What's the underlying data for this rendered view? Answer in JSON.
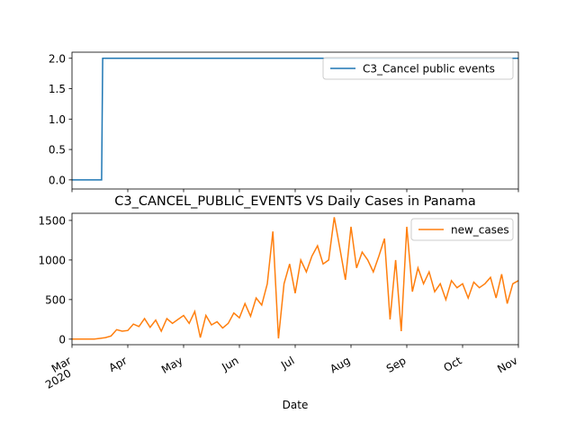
{
  "chart_data": [
    {
      "type": "line",
      "xlim": [
        3,
        11
      ],
      "ylim": [
        -0.15,
        2.1
      ],
      "yticks": [
        {
          "value": 0,
          "label": "0.0"
        },
        {
          "value": 0.5,
          "label": "0.5"
        },
        {
          "value": 1,
          "label": "1.0"
        },
        {
          "value": 1.5,
          "label": "1.5"
        },
        {
          "value": 2,
          "label": "2.0"
        }
      ],
      "legend": "upper right",
      "series": [
        {
          "name": "C3_Cancel public events",
          "color": "#1f77b4",
          "x": [
            3,
            3.53,
            3.55,
            11
          ],
          "values": [
            0,
            0,
            2,
            2
          ]
        }
      ]
    },
    {
      "type": "line",
      "title": "C3_CANCEL_PUBLIC_EVENTS VS Daily Cases in Panama",
      "xlabel": "Date",
      "xlim": [
        3,
        11
      ],
      "ylim": [
        -70,
        1590
      ],
      "xticks": [
        {
          "value": 3,
          "label": "Mar"
        },
        {
          "value": 4,
          "label": "Apr"
        },
        {
          "value": 5,
          "label": "May"
        },
        {
          "value": 6,
          "label": "Jun"
        },
        {
          "value": 7,
          "label": "Jul"
        },
        {
          "value": 8,
          "label": "Aug"
        },
        {
          "value": 9,
          "label": "Sep"
        },
        {
          "value": 10,
          "label": "Oct"
        },
        {
          "value": 11,
          "label": "Nov"
        }
      ],
      "year_label": "2020",
      "yticks": [
        0,
        500,
        1000,
        1500
      ],
      "legend": "upper right",
      "series": [
        {
          "name": "new_cases",
          "color": "#ff7f0e",
          "x": [
            3.0,
            3.1,
            3.2,
            3.3,
            3.4,
            3.5,
            3.6,
            3.7,
            3.8,
            3.9,
            4.0,
            4.1,
            4.2,
            4.3,
            4.4,
            4.5,
            4.6,
            4.7,
            4.8,
            4.9,
            5.0,
            5.1,
            5.2,
            5.3,
            5.4,
            5.5,
            5.6,
            5.7,
            5.8,
            5.9,
            6.0,
            6.1,
            6.2,
            6.3,
            6.4,
            6.5,
            6.6,
            6.7,
            6.8,
            6.9,
            7.0,
            7.1,
            7.2,
            7.3,
            7.4,
            7.5,
            7.6,
            7.7,
            7.8,
            7.9,
            8.0,
            8.1,
            8.2,
            8.3,
            8.4,
            8.5,
            8.6,
            8.7,
            8.8,
            8.9,
            9.0,
            9.1,
            9.2,
            9.3,
            9.4,
            9.5,
            9.6,
            9.7,
            9.8,
            9.9,
            10.0,
            10.1,
            10.2,
            10.3,
            10.4,
            10.5,
            10.6,
            10.7,
            10.8,
            10.9,
            11.0
          ],
          "values": [
            0,
            0,
            0,
            0,
            0,
            10,
            20,
            40,
            120,
            100,
            110,
            190,
            160,
            260,
            150,
            240,
            100,
            260,
            200,
            250,
            300,
            200,
            350,
            20,
            300,
            180,
            220,
            140,
            200,
            330,
            270,
            450,
            290,
            520,
            430,
            700,
            1360,
            10,
            700,
            950,
            580,
            1000,
            850,
            1050,
            1180,
            950,
            1000,
            1540,
            1150,
            750,
            1420,
            900,
            1100,
            1000,
            850,
            1050,
            1270,
            250,
            1000,
            100,
            1420,
            600,
            900,
            700,
            850,
            600,
            700,
            500,
            740,
            650,
            700,
            520,
            720,
            650,
            700,
            780,
            520,
            820,
            450,
            700,
            740
          ]
        }
      ]
    }
  ]
}
